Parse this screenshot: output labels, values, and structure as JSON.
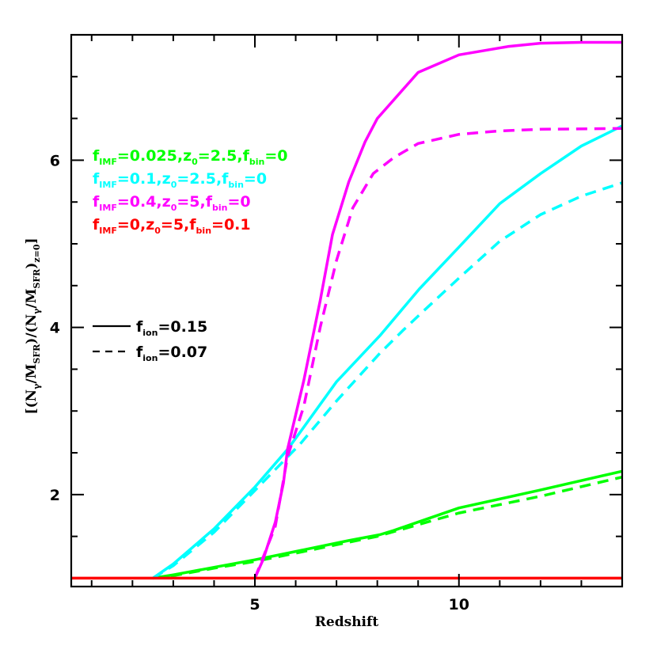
{
  "chart_data": {
    "type": "line",
    "title": "",
    "xlabel": "Redshift",
    "ylabel": "[(N_γ/M_SFR)/(N_γ/M_SFR)_z=0]",
    "ylabel_parts": {
      "open": "[(N",
      "gamma": "γ",
      "slash": "/M",
      "sfr": "SFR",
      "mid": ")/(N",
      "close": ")",
      "zsub": "z=0",
      "end": "]"
    },
    "xlim": [
      0.5,
      14
    ],
    "ylim": [
      0.9,
      7.5
    ],
    "x_major_ticks": [
      5,
      10
    ],
    "x_minor_ticks": [
      1,
      2,
      3,
      4,
      6,
      7,
      8,
      9,
      11,
      12,
      13
    ],
    "y_major_ticks": [
      2,
      4,
      6
    ],
    "y_minor_ticks": [
      1.5,
      2.5,
      3,
      3.5,
      4.5,
      5,
      5.5,
      6.5,
      7
    ],
    "grid": false,
    "legend_position": "upper-left (inside)",
    "series": [
      {
        "name": "f_IMF=0.025, z_0=2.5, f_bin=0, f_ion=0.15",
        "color": "#00ff00",
        "style": "solid",
        "x": [
          2.5,
          3,
          4,
          5,
          6.1,
          7.3,
          8.06,
          8.4,
          10,
          11.95,
          14
        ],
        "values": [
          1.0,
          1.04,
          1.13,
          1.22,
          1.33,
          1.45,
          1.52,
          1.57,
          1.84,
          2.05,
          2.28
        ]
      },
      {
        "name": "f_IMF=0.025, z_0=2.5, f_bin=0, f_ion=0.07",
        "color": "#00ff00",
        "style": "dashed",
        "x": [
          2.5,
          3,
          4,
          5,
          6,
          7,
          8,
          10,
          12,
          14
        ],
        "values": [
          1.0,
          1.03,
          1.12,
          1.2,
          1.3,
          1.4,
          1.5,
          1.78,
          1.98,
          2.21
        ]
      },
      {
        "name": "f_IMF=0.1, z_0=2.5, f_bin=0, f_ion=0.15",
        "color": "#00ffff",
        "style": "solid",
        "x": [
          2.5,
          3,
          4,
          5,
          5.8,
          6.1,
          7,
          8.06,
          9.03,
          10,
          11,
          12,
          13,
          14
        ],
        "values": [
          1.0,
          1.17,
          1.59,
          2.09,
          2.54,
          2.74,
          3.35,
          3.9,
          4.46,
          4.96,
          5.48,
          5.84,
          6.17,
          6.41
        ]
      },
      {
        "name": "f_IMF=0.1, z_0=2.5, f_bin=0, f_ion=0.07",
        "color": "#00ffff",
        "style": "dashed",
        "x": [
          2.5,
          3,
          4,
          5,
          5.8,
          6.1,
          7,
          8.06,
          8.64,
          9.03,
          10,
          11,
          12,
          13,
          14
        ],
        "values": [
          1.0,
          1.15,
          1.55,
          2.05,
          2.45,
          2.6,
          3.12,
          3.69,
          3.97,
          4.15,
          4.59,
          5.03,
          5.35,
          5.57,
          5.73
        ]
      },
      {
        "name": "f_IMF=0.4, z_0=5, f_bin=0, f_ion=0.15",
        "color": "#ff00ff",
        "style": "solid",
        "x": [
          5,
          5.2,
          5.5,
          5.7,
          5.8,
          6.2,
          6.6,
          6.9,
          7.3,
          7.7,
          8.0,
          9.0,
          10,
          11.2,
          12,
          13,
          14
        ],
        "values": [
          1.0,
          1.22,
          1.67,
          2.14,
          2.54,
          3.37,
          4.32,
          5.11,
          5.74,
          6.22,
          6.5,
          7.05,
          7.26,
          7.36,
          7.4,
          7.41,
          7.41
        ]
      },
      {
        "name": "f_IMF=0.4, z_0=5, f_bin=0, f_ion=0.07",
        "color": "#ff00ff",
        "style": "dashed",
        "x": [
          5,
          5.5,
          5.8,
          6.2,
          6.6,
          7.0,
          7.4,
          7.9,
          8.4,
          9.0,
          10,
          11,
          12,
          14
        ],
        "values": [
          1.0,
          1.62,
          2.45,
          3.06,
          4.0,
          4.8,
          5.43,
          5.84,
          6.03,
          6.2,
          6.31,
          6.35,
          6.37,
          6.38
        ]
      },
      {
        "name": "f_IMF=0, z_0=5, f_bin=0.1",
        "color": "#ff0000",
        "style": "solid",
        "x": [
          0.5,
          14
        ],
        "values": [
          1.0,
          1.0
        ]
      }
    ],
    "legend_colors": [
      {
        "color": "#00ff00",
        "f": "f",
        "imf_sub": "IMF",
        "a": "=0.025,z",
        "z_sub": "0",
        "b": "=2.5,f",
        "bin_sub": "bin",
        "c": "=0"
      },
      {
        "color": "#00ffff",
        "f": "f",
        "imf_sub": "IMF",
        "a": "=0.1,z",
        "z_sub": "0",
        "b": "=2.5,f",
        "bin_sub": "bin",
        "c": "=0"
      },
      {
        "color": "#ff00ff",
        "f": "f",
        "imf_sub": "IMF",
        "a": "=0.4,z",
        "z_sub": "0",
        "b": "=5,f",
        "bin_sub": "bin",
        "c": "=0"
      },
      {
        "color": "#ff0000",
        "f": "f",
        "imf_sub": "IMF",
        "a": "=0,z",
        "z_sub": "0",
        "b": "=5,f",
        "bin_sub": "bin",
        "c": "=0.1"
      }
    ],
    "legend_styles": [
      {
        "style": "solid",
        "f": "f",
        "sub": "ion",
        "value": "=0.15"
      },
      {
        "style": "dashed",
        "f": "f",
        "sub": "ion",
        "value": "=0.07"
      }
    ]
  }
}
